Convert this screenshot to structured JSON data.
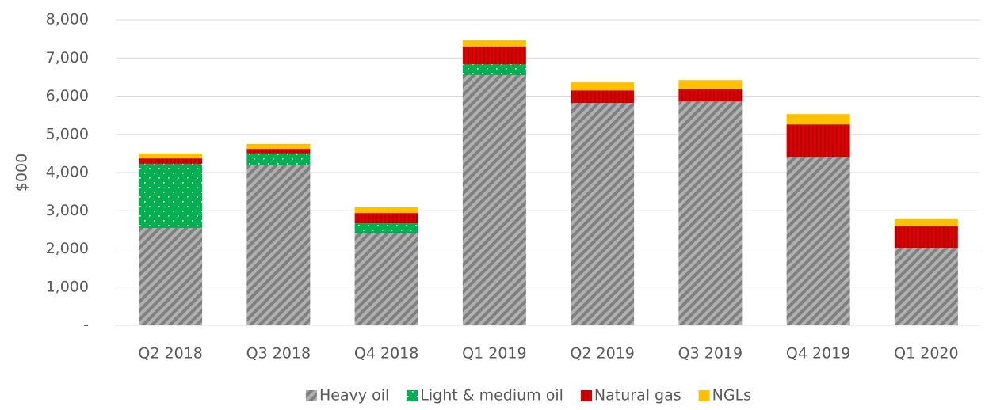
{
  "chart_data": {
    "type": "stacked_bar",
    "y_label": "$000",
    "categories": [
      "Q2 2018",
      "Q3 2018",
      "Q4 2018",
      "Q1 2019",
      "Q2 2019",
      "Q3 2019",
      "Q4 2019",
      "Q1 2020"
    ],
    "series": [
      {
        "name": "Heavy oil",
        "color": "#808080",
        "pattern": "diagonal",
        "values": [
          2550,
          4200,
          2420,
          6550,
          5820,
          5860,
          4410,
          2030
        ]
      },
      {
        "name": "Light & medium oil",
        "color": "#00b050",
        "pattern": "dots",
        "values": [
          1680,
          300,
          250,
          290,
          0,
          0,
          0,
          0
        ]
      },
      {
        "name": "Natural gas",
        "color": "#e00000",
        "pattern": "vertical",
        "values": [
          140,
          120,
          270,
          460,
          330,
          320,
          850,
          560
        ]
      },
      {
        "name": "NGLs",
        "color": "#ffc000",
        "pattern": "solid",
        "values": [
          130,
          130,
          150,
          160,
          210,
          240,
          270,
          190
        ]
      }
    ],
    "ylim": [
      0,
      8000
    ],
    "yticks": [
      {
        "value": 0,
        "label": "-"
      },
      {
        "value": 1000,
        "label": "1,000"
      },
      {
        "value": 2000,
        "label": "2,000"
      },
      {
        "value": 3000,
        "label": "3,000"
      },
      {
        "value": 4000,
        "label": "4,000"
      },
      {
        "value": 5000,
        "label": "5,000"
      },
      {
        "value": 6000,
        "label": "6,000"
      },
      {
        "value": 7000,
        "label": "7,000"
      },
      {
        "value": 8000,
        "label": "8,000"
      }
    ],
    "grid": true,
    "legend": "bottom"
  }
}
